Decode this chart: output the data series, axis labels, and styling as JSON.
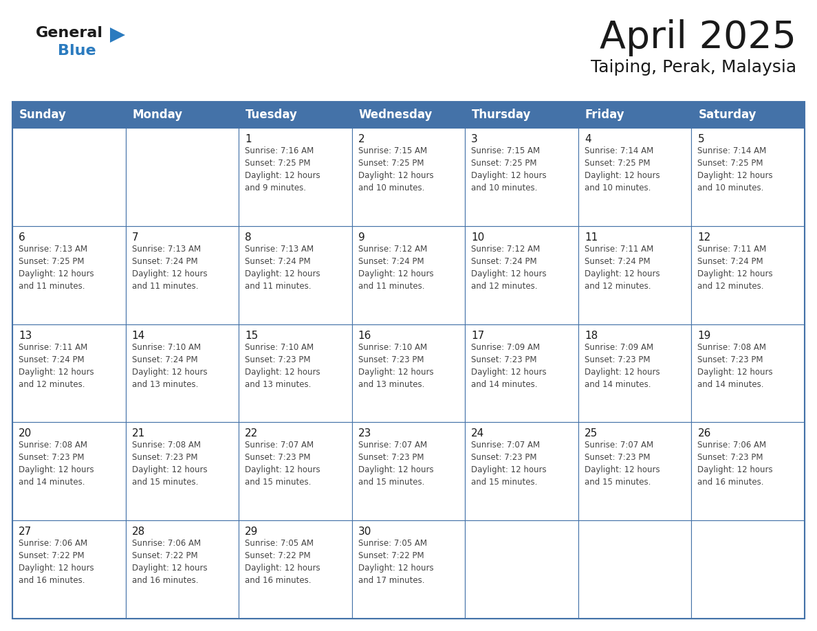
{
  "title": "April 2025",
  "subtitle": "Taiping, Perak, Malaysia",
  "header_bg": "#4472a8",
  "header_text_color": "#ffffff",
  "border_color": "#4472a8",
  "cell_bg": "#ffffff",
  "text_color": "#1a1a1a",
  "info_text_color": "#444444",
  "days_of_week": [
    "Sunday",
    "Monday",
    "Tuesday",
    "Wednesday",
    "Thursday",
    "Friday",
    "Saturday"
  ],
  "weeks": [
    [
      {
        "day": "",
        "info": ""
      },
      {
        "day": "",
        "info": ""
      },
      {
        "day": "1",
        "info": "Sunrise: 7:16 AM\nSunset: 7:25 PM\nDaylight: 12 hours\nand 9 minutes."
      },
      {
        "day": "2",
        "info": "Sunrise: 7:15 AM\nSunset: 7:25 PM\nDaylight: 12 hours\nand 10 minutes."
      },
      {
        "day": "3",
        "info": "Sunrise: 7:15 AM\nSunset: 7:25 PM\nDaylight: 12 hours\nand 10 minutes."
      },
      {
        "day": "4",
        "info": "Sunrise: 7:14 AM\nSunset: 7:25 PM\nDaylight: 12 hours\nand 10 minutes."
      },
      {
        "day": "5",
        "info": "Sunrise: 7:14 AM\nSunset: 7:25 PM\nDaylight: 12 hours\nand 10 minutes."
      }
    ],
    [
      {
        "day": "6",
        "info": "Sunrise: 7:13 AM\nSunset: 7:25 PM\nDaylight: 12 hours\nand 11 minutes."
      },
      {
        "day": "7",
        "info": "Sunrise: 7:13 AM\nSunset: 7:24 PM\nDaylight: 12 hours\nand 11 minutes."
      },
      {
        "day": "8",
        "info": "Sunrise: 7:13 AM\nSunset: 7:24 PM\nDaylight: 12 hours\nand 11 minutes."
      },
      {
        "day": "9",
        "info": "Sunrise: 7:12 AM\nSunset: 7:24 PM\nDaylight: 12 hours\nand 11 minutes."
      },
      {
        "day": "10",
        "info": "Sunrise: 7:12 AM\nSunset: 7:24 PM\nDaylight: 12 hours\nand 12 minutes."
      },
      {
        "day": "11",
        "info": "Sunrise: 7:11 AM\nSunset: 7:24 PM\nDaylight: 12 hours\nand 12 minutes."
      },
      {
        "day": "12",
        "info": "Sunrise: 7:11 AM\nSunset: 7:24 PM\nDaylight: 12 hours\nand 12 minutes."
      }
    ],
    [
      {
        "day": "13",
        "info": "Sunrise: 7:11 AM\nSunset: 7:24 PM\nDaylight: 12 hours\nand 12 minutes."
      },
      {
        "day": "14",
        "info": "Sunrise: 7:10 AM\nSunset: 7:24 PM\nDaylight: 12 hours\nand 13 minutes."
      },
      {
        "day": "15",
        "info": "Sunrise: 7:10 AM\nSunset: 7:23 PM\nDaylight: 12 hours\nand 13 minutes."
      },
      {
        "day": "16",
        "info": "Sunrise: 7:10 AM\nSunset: 7:23 PM\nDaylight: 12 hours\nand 13 minutes."
      },
      {
        "day": "17",
        "info": "Sunrise: 7:09 AM\nSunset: 7:23 PM\nDaylight: 12 hours\nand 14 minutes."
      },
      {
        "day": "18",
        "info": "Sunrise: 7:09 AM\nSunset: 7:23 PM\nDaylight: 12 hours\nand 14 minutes."
      },
      {
        "day": "19",
        "info": "Sunrise: 7:08 AM\nSunset: 7:23 PM\nDaylight: 12 hours\nand 14 minutes."
      }
    ],
    [
      {
        "day": "20",
        "info": "Sunrise: 7:08 AM\nSunset: 7:23 PM\nDaylight: 12 hours\nand 14 minutes."
      },
      {
        "day": "21",
        "info": "Sunrise: 7:08 AM\nSunset: 7:23 PM\nDaylight: 12 hours\nand 15 minutes."
      },
      {
        "day": "22",
        "info": "Sunrise: 7:07 AM\nSunset: 7:23 PM\nDaylight: 12 hours\nand 15 minutes."
      },
      {
        "day": "23",
        "info": "Sunrise: 7:07 AM\nSunset: 7:23 PM\nDaylight: 12 hours\nand 15 minutes."
      },
      {
        "day": "24",
        "info": "Sunrise: 7:07 AM\nSunset: 7:23 PM\nDaylight: 12 hours\nand 15 minutes."
      },
      {
        "day": "25",
        "info": "Sunrise: 7:07 AM\nSunset: 7:23 PM\nDaylight: 12 hours\nand 15 minutes."
      },
      {
        "day": "26",
        "info": "Sunrise: 7:06 AM\nSunset: 7:23 PM\nDaylight: 12 hours\nand 16 minutes."
      }
    ],
    [
      {
        "day": "27",
        "info": "Sunrise: 7:06 AM\nSunset: 7:22 PM\nDaylight: 12 hours\nand 16 minutes."
      },
      {
        "day": "28",
        "info": "Sunrise: 7:06 AM\nSunset: 7:22 PM\nDaylight: 12 hours\nand 16 minutes."
      },
      {
        "day": "29",
        "info": "Sunrise: 7:05 AM\nSunset: 7:22 PM\nDaylight: 12 hours\nand 16 minutes."
      },
      {
        "day": "30",
        "info": "Sunrise: 7:05 AM\nSunset: 7:22 PM\nDaylight: 12 hours\nand 17 minutes."
      },
      {
        "day": "",
        "info": ""
      },
      {
        "day": "",
        "info": ""
      },
      {
        "day": "",
        "info": ""
      }
    ]
  ],
  "logo_general_color": "#1a1a1a",
  "logo_blue_color": "#2b7bbf",
  "logo_triangle_color": "#2b7bbf",
  "title_fontsize": 40,
  "subtitle_fontsize": 18,
  "header_fontsize": 12,
  "day_num_fontsize": 11,
  "info_fontsize": 8.5
}
